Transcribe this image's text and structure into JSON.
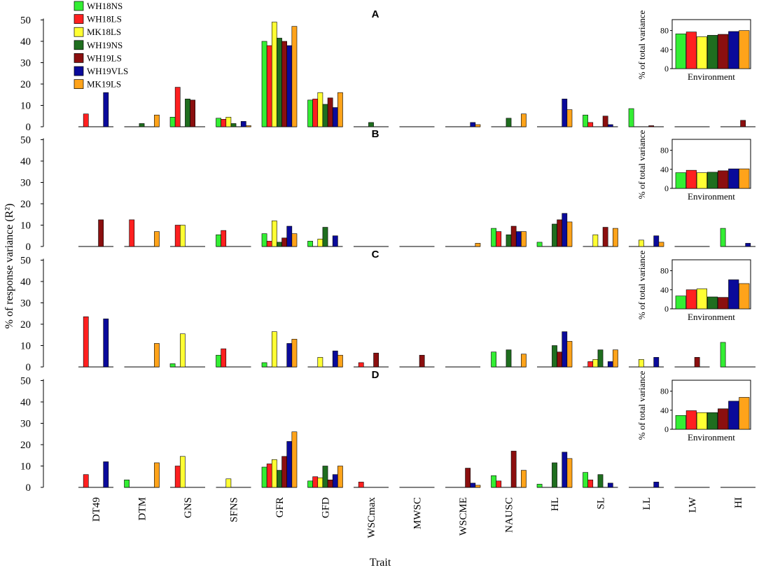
{
  "figure": {
    "ylabel": "% of response variance (R²)",
    "xlabel": "Trait"
  },
  "legend": [
    {
      "name": "WH18NS",
      "color": "#33ee33"
    },
    {
      "name": "WH18LS",
      "color": "#ff2020"
    },
    {
      "name": "MK18LS",
      "color": "#ffff33"
    },
    {
      "name": "WH19NS",
      "color": "#1f6e1f"
    },
    {
      "name": "WH19LS",
      "color": "#8b0f0f"
    },
    {
      "name": "WH19VLS",
      "color": "#0a0a9a"
    },
    {
      "name": "MK19LS",
      "color": "#ffa31a"
    }
  ],
  "chart_data": [
    {
      "type": "bar",
      "panel": "A",
      "categories": [
        "DT49",
        "DTM",
        "GNS",
        "SFNS",
        "GFR",
        "GFD",
        "WSCmax",
        "MWSC",
        "WSCME",
        "NAUSC",
        "HL",
        "SL",
        "LL",
        "LW",
        "HI"
      ],
      "series": [
        {
          "name": "WH18NS",
          "values": [
            0,
            0,
            4.5,
            4,
            40,
            12.5,
            0,
            0,
            0,
            0,
            0,
            5.5,
            8.5,
            0,
            0
          ]
        },
        {
          "name": "WH18LS",
          "values": [
            6,
            0,
            18.5,
            3.5,
            38,
            13,
            0,
            0,
            0,
            0,
            0,
            2,
            0,
            0,
            0
          ]
        },
        {
          "name": "MK18LS",
          "values": [
            0,
            0,
            0,
            4.5,
            49,
            16,
            0,
            0,
            0,
            0,
            0,
            0,
            0,
            0,
            0
          ]
        },
        {
          "name": "WH19NS",
          "values": [
            0,
            1.5,
            13,
            1.5,
            41.5,
            10.5,
            2,
            0,
            0,
            4,
            0,
            0,
            0,
            0,
            0
          ]
        },
        {
          "name": "WH19LS",
          "values": [
            0,
            0,
            12.5,
            0,
            40,
            13.5,
            0,
            0,
            0,
            0,
            0,
            5,
            0.5,
            0,
            3
          ]
        },
        {
          "name": "WH19VLS",
          "values": [
            16,
            0,
            0,
            2.5,
            38,
            9,
            0,
            0,
            2,
            0,
            13,
            1,
            0,
            0,
            0
          ]
        },
        {
          "name": "MK19LS",
          "values": [
            0,
            5.5,
            0,
            0.5,
            47,
            16,
            0,
            0,
            1,
            6,
            8,
            0,
            0,
            0,
            0
          ]
        }
      ],
      "ylim": [
        0,
        50
      ],
      "yticks": [
        "0",
        "10",
        "20",
        "30",
        "40",
        "50"
      ],
      "inset": {
        "values": [
          73,
          77,
          67,
          70,
          72,
          78,
          80
        ],
        "ylim": [
          0,
          100
        ],
        "yticks": [
          "0",
          "40",
          "80"
        ],
        "ylabel": "% of total variance",
        "xlabel": "Environment"
      }
    },
    {
      "type": "bar",
      "panel": "B",
      "categories": [
        "DT49",
        "DTM",
        "GNS",
        "SFNS",
        "GFR",
        "GFD",
        "WSCmax",
        "MWSC",
        "WSCME",
        "NAUSC",
        "HL",
        "SL",
        "LL",
        "LW",
        "HI"
      ],
      "series": [
        {
          "name": "WH18NS",
          "values": [
            0,
            0,
            0,
            5.5,
            6,
            2.5,
            0,
            0,
            0,
            8.5,
            2,
            0,
            0,
            0,
            8.5
          ]
        },
        {
          "name": "WH18LS",
          "values": [
            0,
            12.5,
            10,
            7.5,
            2.5,
            0,
            0,
            0,
            0,
            7,
            0,
            0,
            0,
            0,
            0
          ]
        },
        {
          "name": "MK18LS",
          "values": [
            0,
            0,
            10,
            0,
            12,
            3.5,
            0,
            0,
            0,
            0,
            0,
            5.5,
            3,
            0,
            0
          ]
        },
        {
          "name": "WH19NS",
          "values": [
            0,
            0,
            0,
            0,
            2,
            9,
            0,
            0,
            0,
            5.5,
            10.5,
            0,
            0,
            0,
            0
          ]
        },
        {
          "name": "WH19LS",
          "values": [
            12.5,
            0,
            0,
            0,
            4,
            0,
            0,
            0,
            0,
            9.5,
            12.5,
            9,
            0,
            0,
            0
          ]
        },
        {
          "name": "WH19VLS",
          "values": [
            0,
            0,
            0,
            0,
            9.5,
            5,
            0,
            0,
            0,
            7,
            15.5,
            0,
            5,
            0,
            1.5
          ]
        },
        {
          "name": "MK19LS",
          "values": [
            0,
            7,
            0,
            0,
            6,
            0,
            0,
            0,
            1.5,
            7,
            11.5,
            8.5,
            2,
            0,
            0
          ]
        }
      ],
      "ylim": [
        0,
        50
      ],
      "yticks": [
        "0",
        "10",
        "20",
        "30",
        "40",
        "50"
      ],
      "inset": {
        "values": [
          33,
          38,
          33,
          34,
          37,
          41,
          41
        ],
        "ylim": [
          0,
          100
        ],
        "yticks": [
          "0",
          "40",
          "80"
        ],
        "ylabel": "% of total variance",
        "xlabel": "Environment"
      }
    },
    {
      "type": "bar",
      "panel": "C",
      "categories": [
        "DT49",
        "DTM",
        "GNS",
        "SFNS",
        "GFR",
        "GFD",
        "WSCmax",
        "MWSC",
        "WSCME",
        "NAUSC",
        "HL",
        "SL",
        "LL",
        "LW",
        "HI"
      ],
      "series": [
        {
          "name": "WH18NS",
          "values": [
            0,
            0,
            1.5,
            5.5,
            2,
            0,
            0,
            0,
            0,
            7,
            0,
            0,
            0,
            0,
            11.5
          ]
        },
        {
          "name": "WH18LS",
          "values": [
            23.5,
            0,
            0,
            8.5,
            0,
            0,
            2,
            0,
            0,
            0,
            0,
            2.5,
            0,
            0,
            0
          ]
        },
        {
          "name": "MK18LS",
          "values": [
            0,
            0,
            15.5,
            0,
            16.5,
            4.5,
            0,
            0,
            0,
            0,
            0,
            3.5,
            3.5,
            0,
            0
          ]
        },
        {
          "name": "WH19NS",
          "values": [
            0,
            0,
            0,
            0,
            0,
            0,
            0,
            0,
            0,
            8,
            10,
            8,
            0,
            0,
            0
          ]
        },
        {
          "name": "WH19LS",
          "values": [
            0,
            0,
            0,
            0,
            0,
            0,
            6.5,
            5.5,
            0,
            0,
            7,
            0,
            0,
            4.5,
            0
          ]
        },
        {
          "name": "WH19VLS",
          "values": [
            22.5,
            0,
            0,
            0,
            11,
            7.5,
            0,
            0,
            0,
            0,
            16.5,
            2.5,
            4.5,
            0,
            0
          ]
        },
        {
          "name": "MK19LS",
          "values": [
            0,
            11,
            0,
            0,
            13,
            5.5,
            0,
            0,
            0,
            6,
            12,
            8,
            0,
            0,
            0
          ]
        }
      ],
      "ylim": [
        0,
        50
      ],
      "yticks": [
        "0",
        "10",
        "20",
        "30",
        "40",
        "50"
      ],
      "inset": {
        "values": [
          27,
          40,
          42,
          25,
          24,
          61,
          53
        ],
        "ylim": [
          0,
          100
        ],
        "yticks": [
          "0",
          "40",
          "80"
        ],
        "ylabel": "% of total variance",
        "xlabel": "Environment"
      }
    },
    {
      "type": "bar",
      "panel": "D",
      "categories": [
        "DT49",
        "DTM",
        "GNS",
        "SFNS",
        "GFR",
        "GFD",
        "WSCmax",
        "MWSC",
        "WSCME",
        "NAUSC",
        "HL",
        "SL",
        "LL",
        "LW",
        "HI"
      ],
      "series": [
        {
          "name": "WH18NS",
          "values": [
            0,
            3.5,
            0,
            0,
            9.5,
            3,
            0,
            0,
            0,
            5.5,
            1.5,
            7,
            0,
            0,
            0
          ]
        },
        {
          "name": "WH18LS",
          "values": [
            6,
            0,
            10,
            0,
            11,
            5,
            2.5,
            0,
            0,
            3,
            0,
            3.5,
            0,
            0,
            0
          ]
        },
        {
          "name": "MK18LS",
          "values": [
            0,
            0,
            14.5,
            4,
            13,
            4.5,
            0,
            0,
            0,
            0,
            0,
            0,
            0,
            0,
            0
          ]
        },
        {
          "name": "WH19NS",
          "values": [
            0,
            0,
            0,
            0,
            8,
            10,
            0,
            0,
            0,
            0,
            11.5,
            6,
            0,
            0,
            0
          ]
        },
        {
          "name": "WH19LS",
          "values": [
            0,
            0,
            0,
            0,
            14.5,
            3.5,
            0,
            0,
            9,
            17,
            0,
            0,
            0,
            0,
            0
          ]
        },
        {
          "name": "WH19VLS",
          "values": [
            12,
            0,
            0,
            0,
            21.5,
            6,
            0,
            0,
            2,
            0,
            16.5,
            2,
            2.5,
            0,
            0
          ]
        },
        {
          "name": "MK19LS",
          "values": [
            0,
            11.5,
            0,
            0,
            26,
            10,
            0,
            0,
            1,
            8,
            13.5,
            0,
            0,
            0,
            0
          ]
        }
      ],
      "ylim": [
        0,
        50
      ],
      "yticks": [
        "0",
        "10",
        "20",
        "30",
        "40",
        "50"
      ],
      "inset": {
        "values": [
          29,
          39,
          35,
          35,
          43,
          59,
          67
        ],
        "ylim": [
          0,
          100
        ],
        "yticks": [
          "0",
          "40",
          "80"
        ],
        "ylabel": "% of total variance",
        "xlabel": "Environment"
      }
    }
  ]
}
